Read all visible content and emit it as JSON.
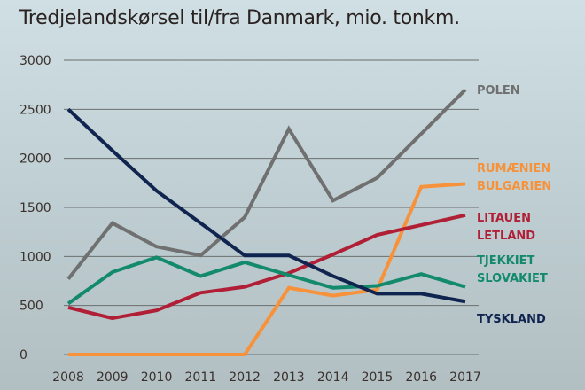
{
  "chart_data": {
    "type": "line",
    "title": "Tredjelandskørsel til/fra Danmark, mio. tonkm.",
    "xlabel": "",
    "ylabel": "",
    "x": [
      "2008",
      "2009",
      "2010",
      "2011",
      "2012",
      "2013",
      "2014",
      "2015",
      "2016",
      "2017"
    ],
    "ylim": [
      0,
      3000
    ],
    "yticks": [
      "0",
      "500",
      "1000",
      "1500",
      "2000",
      "2500",
      "3000"
    ],
    "grid": true,
    "series": [
      {
        "name": "POLEN",
        "labels": [
          "POLEN"
        ],
        "color": "#707070",
        "values": [
          770,
          1340,
          1100,
          1010,
          1400,
          2300,
          1570,
          1800,
          2250,
          2700
        ]
      },
      {
        "name": "RUMÆNIEN BULGARIEN",
        "labels": [
          "RUMÆNIEN",
          "BULGARIEN"
        ],
        "color": "#f7923a",
        "values": [
          0,
          0,
          0,
          0,
          0,
          680,
          600,
          660,
          1710,
          1740
        ]
      },
      {
        "name": "LITAUEN LETLAND",
        "labels": [
          "LITAUEN",
          "LETLAND"
        ],
        "color": "#b01f35",
        "values": [
          480,
          370,
          450,
          630,
          690,
          830,
          1020,
          1220,
          1320,
          1420
        ]
      },
      {
        "name": "TJEKKIET SLOVAKIET",
        "labels": [
          "TJEKKIET",
          "SLOVAKIET"
        ],
        "color": "#138a6c",
        "values": [
          520,
          840,
          990,
          800,
          940,
          810,
          680,
          700,
          820,
          690
        ]
      },
      {
        "name": "TYSKLAND",
        "labels": [
          "TYSKLAND"
        ],
        "color": "#0f2550",
        "values": [
          2500,
          2080,
          1670,
          1340,
          1010,
          1010,
          800,
          620,
          620,
          540
        ]
      }
    ]
  }
}
